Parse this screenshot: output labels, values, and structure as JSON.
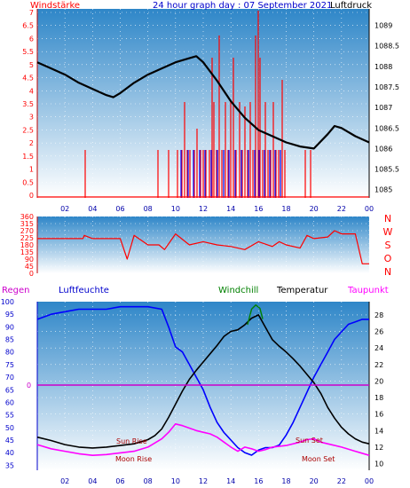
{
  "header": {
    "left_label": "Windstärke",
    "title": "24 hour graph day : 07 September 2021",
    "right_label": "Luftdruck"
  },
  "middle_header": {
    "left_label": "Regen",
    "humidity_label": "Luftfeuchte",
    "windchill_label": "Windchill",
    "temperature_label": "Temperatur",
    "dewpoint_label": "Taupunkt"
  },
  "colors": {
    "wind": "#ff0000",
    "gust": "#0000ff",
    "pressure": "#000000",
    "humidity": "#0000ff",
    "temperature": "#000000",
    "dewpoint": "#ff00ff",
    "windchill": "#008000",
    "rain_zero_line": "#cc00cc",
    "sky_top": "#2e86c8",
    "sky_bottom": "#ffffff"
  },
  "events": {
    "sun_rise": "Sun Rise",
    "sun_set": "Sun Set",
    "moon_rise": "Moon Rise",
    "moon_set": "Moon Set"
  },
  "chart_data": [
    {
      "id": "wind_pressure",
      "type": "line",
      "title": "24 hour graph day : 07 September 2021",
      "xlabel": "",
      "x_ticks": [
        "02",
        "04",
        "06",
        "08",
        "10",
        "12",
        "14",
        "16",
        "18",
        "20",
        "22",
        "00"
      ],
      "y_left_label": "Windstärke",
      "y_left_ticks": [
        "0",
        "0.5",
        "1",
        "1.5",
        "2",
        "2.5",
        "3",
        "3.5",
        "4",
        "4.5",
        "5",
        "5.5",
        "6",
        "6.5",
        "7"
      ],
      "y_left_range": [
        0,
        7
      ],
      "y_right_label": "Luftdruck",
      "y_right_ticks": [
        "1085",
        "1085.5",
        "1086",
        "1086.5",
        "1087",
        "1087.5",
        "1088",
        "1088.5",
        "1089"
      ],
      "y_right_range": [
        1084.8,
        1089.4
      ],
      "series": [
        {
          "name": "Luftdruck",
          "axis": "right",
          "x": [
            0,
            1,
            2,
            3,
            4,
            5,
            5.5,
            6,
            7,
            8,
            9,
            10,
            11,
            11.5,
            12,
            13,
            14,
            15,
            16,
            17,
            18,
            19,
            20,
            21,
            21.5,
            22,
            23,
            24
          ],
          "values": [
            1088.1,
            1087.95,
            1087.8,
            1087.6,
            1087.45,
            1087.3,
            1087.25,
            1087.35,
            1087.6,
            1087.8,
            1087.95,
            1088.1,
            1088.2,
            1088.25,
            1088.1,
            1087.65,
            1087.15,
            1086.75,
            1086.45,
            1086.3,
            1086.15,
            1086.05,
            1086.0,
            1086.35,
            1086.55,
            1086.5,
            1086.3,
            1086.15
          ]
        }
      ]
    },
    {
      "id": "wind_direction",
      "type": "line",
      "y_ticks": [
        "0",
        "45",
        "90",
        "135",
        "180",
        "225",
        "270",
        "315",
        "360"
      ],
      "y_range": [
        0,
        360
      ],
      "direction_labels": [
        "N",
        "W",
        "S",
        "O",
        "N"
      ],
      "series": [
        {
          "name": "Windrichtung",
          "x": [
            0,
            2,
            3.3,
            3.4,
            4,
            5,
            6,
            6.5,
            7,
            8,
            8.8,
            9.2,
            10,
            11,
            12,
            13,
            14,
            15,
            16,
            17,
            17.5,
            18,
            19,
            19.5,
            20,
            21,
            21.5,
            22,
            23,
            23.5,
            24
          ],
          "values": [
            220,
            220,
            220,
            240,
            220,
            220,
            220,
            90,
            240,
            180,
            180,
            150,
            250,
            180,
            200,
            180,
            170,
            150,
            200,
            170,
            200,
            180,
            160,
            240,
            220,
            230,
            270,
            250,
            250,
            60,
            60
          ]
        }
      ]
    },
    {
      "id": "temp_humidity",
      "type": "line",
      "x_ticks": [
        "02",
        "04",
        "06",
        "08",
        "10",
        "12",
        "14",
        "16",
        "18",
        "20",
        "22",
        "00"
      ],
      "y_left_label": "Luftfeuchte",
      "y_left_ticks": [
        "35",
        "40",
        "45",
        "50",
        "55",
        "60",
        "65",
        "70",
        "75",
        "80",
        "85",
        "90",
        "95",
        "100"
      ],
      "y_left_range": [
        33,
        100
      ],
      "rain_axis_label": "Regen",
      "rain_axis_value": "0",
      "y_right_label": "Temperatur",
      "y_right_ticks": [
        "10",
        "12",
        "14",
        "16",
        "18",
        "20",
        "22",
        "24",
        "26",
        "28"
      ],
      "y_right_range": [
        9.2,
        29.6
      ],
      "series": [
        {
          "name": "Luftfeuchte",
          "axis": "left",
          "x": [
            0,
            1,
            2,
            3,
            4,
            5,
            6,
            7,
            8,
            9,
            9.5,
            10,
            10.5,
            11,
            11.5,
            12,
            12.5,
            13,
            13.5,
            14,
            14.5,
            15,
            15.5,
            16,
            16.5,
            17,
            17.5,
            18,
            18.5,
            19,
            19.5,
            20,
            20.5,
            21,
            21.5,
            22,
            22.5,
            23,
            23.5,
            24
          ],
          "values": [
            93,
            95,
            96,
            97,
            97,
            97,
            98,
            98,
            98,
            97,
            90,
            82,
            80,
            75,
            70,
            65,
            58,
            52,
            48,
            45,
            42,
            40,
            39,
            41,
            42,
            42,
            43,
            47,
            52,
            58,
            64,
            70,
            75,
            80,
            85,
            88,
            91,
            92,
            93,
            93
          ]
        },
        {
          "name": "Temperatur",
          "axis": "right",
          "x": [
            0,
            1,
            2,
            3,
            4,
            5,
            6,
            7,
            8,
            8.5,
            9,
            9.5,
            10,
            10.5,
            11,
            11.5,
            12,
            12.5,
            13,
            13.5,
            14,
            14.5,
            15,
            15.5,
            16,
            16.5,
            17,
            17.5,
            18,
            18.5,
            19,
            19.5,
            20,
            20.5,
            21,
            21.5,
            22,
            22.5,
            23,
            23.5,
            24
          ],
          "values": [
            13.2,
            12.8,
            12.3,
            12.0,
            11.9,
            12.0,
            12.2,
            12.4,
            12.9,
            13.4,
            14.2,
            15.6,
            17.2,
            18.8,
            20.2,
            21.3,
            22.3,
            23.3,
            24.3,
            25.4,
            26.0,
            26.2,
            26.8,
            27.6,
            28.0,
            26.5,
            25.0,
            24.2,
            23.5,
            22.7,
            21.8,
            20.8,
            19.8,
            18.5,
            16.8,
            15.5,
            14.4,
            13.6,
            13.0,
            12.6,
            12.4
          ]
        },
        {
          "name": "Taupunkt",
          "axis": "right",
          "x": [
            0,
            1,
            2,
            3,
            4,
            5,
            6,
            7,
            8,
            9,
            9.5,
            10,
            10.5,
            11,
            11.5,
            12,
            12.5,
            13,
            13.5,
            14,
            14.5,
            15,
            15.5,
            16,
            16.5,
            17,
            18,
            19,
            19.5,
            20,
            20.5,
            21,
            22,
            23,
            24
          ],
          "values": [
            12.3,
            11.8,
            11.5,
            11.2,
            11.0,
            11.1,
            11.3,
            11.5,
            12.0,
            13.0,
            13.8,
            14.8,
            14.6,
            14.3,
            14.0,
            13.8,
            13.6,
            13.2,
            12.6,
            12.0,
            11.5,
            12.0,
            11.8,
            11.5,
            11.7,
            12.0,
            12.2,
            12.6,
            12.9,
            13.0,
            12.6,
            12.4,
            12.0,
            11.5,
            11.0
          ]
        },
        {
          "name": "Windchill",
          "axis": "right",
          "x": [
            15.2,
            15.5,
            15.8,
            16.1,
            16.3
          ],
          "values": [
            26.8,
            28.7,
            29.2,
            28.8,
            27.5
          ]
        }
      ]
    }
  ]
}
